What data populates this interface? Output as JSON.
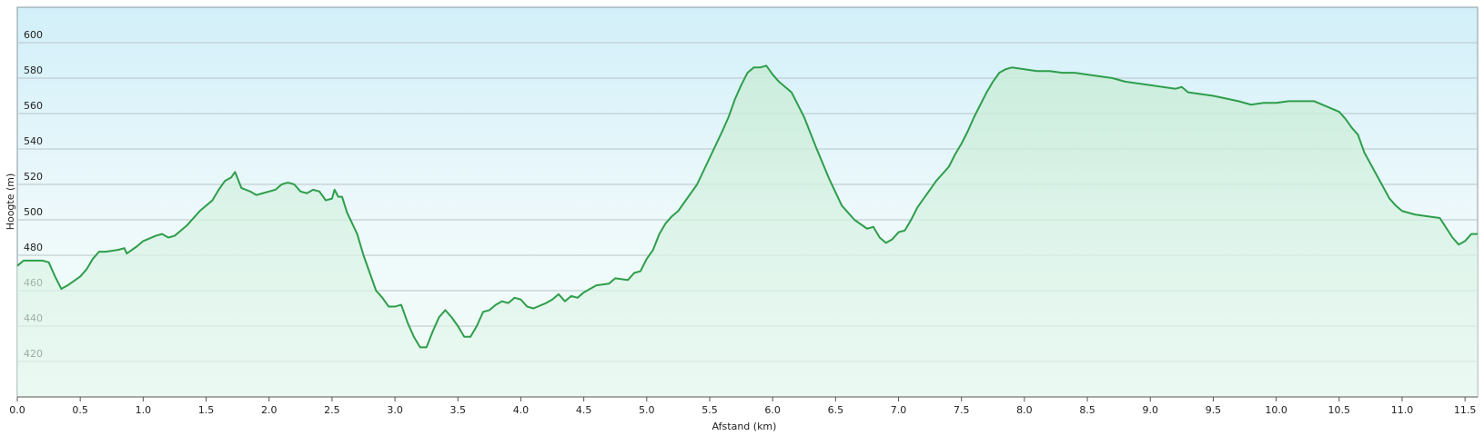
{
  "chart_data": {
    "type": "area",
    "ylabel": "Hoogte (m)",
    "xlabel": "Afstand  (km)",
    "color": "#2e9e4b",
    "grid": true,
    "xlim": [
      0,
      11.6
    ],
    "ylim": [
      400,
      620
    ],
    "xticks": [
      {
        "value": 0,
        "label": "0.0"
      },
      0.5,
      {
        "value": 1,
        "label": "1.0"
      },
      1.5,
      {
        "value": 2,
        "label": "2.0"
      },
      2.5,
      {
        "value": 3,
        "label": "3.0"
      },
      3.5,
      {
        "value": 4,
        "label": "4.0"
      },
      4.5,
      {
        "value": 5,
        "label": "5.0"
      },
      5.5,
      {
        "value": 6,
        "label": "6.0"
      },
      6.5,
      {
        "value": 7,
        "label": "7.0"
      },
      7.5,
      {
        "value": 8,
        "label": "8.0"
      },
      8.5,
      {
        "value": 9,
        "label": "9.0"
      },
      9.5,
      {
        "value": 10,
        "label": "10.0"
      },
      10.5,
      {
        "value": 11,
        "label": "11.0"
      },
      11.5
    ],
    "yticks": [
      420,
      440,
      460,
      480,
      500,
      520,
      540,
      560,
      580,
      600
    ],
    "x": [
      0,
      0.05,
      0.1,
      0.2,
      0.25,
      0.3,
      0.35,
      0.4,
      0.5,
      0.55,
      0.6,
      0.65,
      0.7,
      0.8,
      0.85,
      0.87,
      0.95,
      1.0,
      1.1,
      1.15,
      1.2,
      1.25,
      1.35,
      1.45,
      1.5,
      1.55,
      1.6,
      1.65,
      1.7,
      1.73,
      1.78,
      1.85,
      1.9,
      1.95,
      2.0,
      2.05,
      2.1,
      2.15,
      2.2,
      2.25,
      2.3,
      2.35,
      2.4,
      2.45,
      2.5,
      2.52,
      2.55,
      2.58,
      2.62,
      2.7,
      2.75,
      2.8,
      2.85,
      2.9,
      2.95,
      3.0,
      3.05,
      3.1,
      3.15,
      3.2,
      3.25,
      3.3,
      3.35,
      3.4,
      3.45,
      3.5,
      3.55,
      3.6,
      3.65,
      3.7,
      3.75,
      3.8,
      3.85,
      3.9,
      3.95,
      4.0,
      4.05,
      4.1,
      4.2,
      4.25,
      4.3,
      4.35,
      4.4,
      4.45,
      4.5,
      4.55,
      4.6,
      4.7,
      4.75,
      4.85,
      4.9,
      4.95,
      5.0,
      5.05,
      5.1,
      5.15,
      5.2,
      5.25,
      5.3,
      5.4,
      5.5,
      5.6,
      5.65,
      5.7,
      5.75,
      5.8,
      5.85,
      5.9,
      5.95,
      6.0,
      6.05,
      6.1,
      6.15,
      6.25,
      6.35,
      6.45,
      6.55,
      6.65,
      6.75,
      6.8,
      6.85,
      6.9,
      6.95,
      7.0,
      7.05,
      7.1,
      7.15,
      7.2,
      7.3,
      7.4,
      7.45,
      7.5,
      7.55,
      7.6,
      7.65,
      7.7,
      7.75,
      7.8,
      7.85,
      7.9,
      8.0,
      8.1,
      8.2,
      8.3,
      8.4,
      8.5,
      8.7,
      8.8,
      9.0,
      9.2,
      9.25,
      9.3,
      9.5,
      9.7,
      9.8,
      9.9,
      10.0,
      10.1,
      10.3,
      10.4,
      10.5,
      10.55,
      10.6,
      10.65,
      10.7,
      10.8,
      10.9,
      10.95,
      11.0,
      11.1,
      11.2,
      11.3,
      11.4,
      11.45,
      11.5,
      11.55,
      11.6
    ],
    "values": [
      474,
      477,
      477,
      477,
      476,
      468,
      461,
      463,
      468,
      472,
      478,
      482,
      482,
      483,
      484,
      481,
      485,
      488,
      491,
      492,
      490,
      491,
      497,
      505,
      508,
      511,
      517,
      522,
      524,
      527,
      518,
      516,
      514,
      515,
      516,
      517,
      520,
      521,
      520,
      516,
      515,
      517,
      516,
      511,
      512,
      517,
      513,
      513,
      504,
      492,
      480,
      470,
      460,
      456,
      451,
      451,
      452,
      442,
      434,
      428,
      428,
      437,
      445,
      449,
      445,
      440,
      434,
      434,
      440,
      448,
      449,
      452,
      454,
      453,
      456,
      455,
      451,
      450,
      453,
      455,
      458,
      454,
      457,
      456,
      459,
      461,
      463,
      464,
      467,
      466,
      470,
      471,
      478,
      483,
      492,
      498,
      502,
      505,
      510,
      520,
      535,
      550,
      558,
      568,
      576,
      583,
      586,
      586,
      587,
      582,
      578,
      575,
      572,
      558,
      540,
      523,
      508,
      500,
      495,
      496,
      490,
      487,
      489,
      493,
      494,
      500,
      507,
      512,
      522,
      530,
      537,
      543,
      550,
      558,
      565,
      572,
      578,
      583,
      585,
      586,
      585,
      584,
      584,
      583,
      583,
      582,
      580,
      578,
      576,
      574,
      575,
      572,
      570,
      567,
      565,
      566,
      566,
      567,
      567,
      564,
      561,
      557,
      552,
      548,
      538,
      525,
      512,
      508,
      505,
      503,
      502,
      501,
      490,
      486,
      488,
      492,
      492
    ]
  }
}
